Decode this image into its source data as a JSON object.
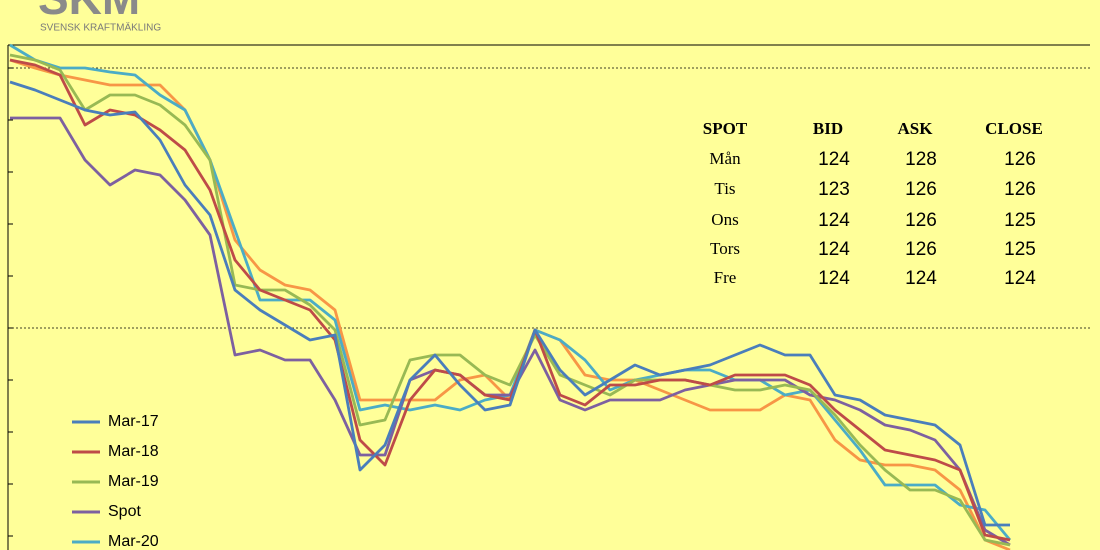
{
  "logo": {
    "title": "SKM",
    "subtitle": "SVENSK KRAFTMÄKLING"
  },
  "table": {
    "header": [
      "SPOT",
      "BID",
      "ASK",
      "CLOSE"
    ],
    "rows": [
      [
        "Mån",
        "124",
        "128",
        "126"
      ],
      [
        "Tis",
        "123",
        "126",
        "126"
      ],
      [
        "Ons",
        "124",
        "126",
        "125"
      ],
      [
        "Tors",
        "124",
        "126",
        "125"
      ],
      [
        "Fre",
        "124",
        "124",
        "124"
      ]
    ]
  },
  "chart_data": {
    "type": "line",
    "categories": [
      null,
      null,
      null,
      null,
      null,
      null,
      null,
      null,
      null,
      null,
      null,
      null,
      null,
      null,
      null,
      null,
      null,
      null,
      null,
      null,
      null,
      null,
      null,
      null,
      null,
      null,
      null,
      null,
      null,
      null,
      null,
      null,
      null,
      null,
      null,
      null,
      null,
      null,
      null,
      null,
      null
    ],
    "ylim": [
      0,
      505
    ],
    "yticks": [
      14,
      66,
      118,
      170,
      222,
      274,
      326,
      378,
      430,
      482
    ],
    "reference_lines": [
      222,
      482
    ],
    "series": [
      {
        "name": "Mar-17",
        "color": "#4a7ebb",
        "values": [
          468,
          460,
          450,
          440,
          435,
          438,
          410,
          365,
          335,
          260,
          240,
          225,
          210,
          215,
          80,
          105,
          170,
          195,
          165,
          140,
          145,
          220,
          180,
          155,
          170,
          185,
          175,
          180,
          185,
          195,
          205,
          195,
          195,
          155,
          150,
          135,
          130,
          125,
          105,
          25,
          25
        ]
      },
      {
        "name": "Mar-18",
        "color": "#be4b48",
        "values": [
          490,
          485,
          475,
          425,
          440,
          435,
          420,
          400,
          360,
          290,
          260,
          250,
          240,
          210,
          110,
          85,
          150,
          180,
          175,
          155,
          150,
          220,
          155,
          145,
          165,
          165,
          170,
          170,
          165,
          175,
          175,
          175,
          165,
          140,
          120,
          100,
          95,
          90,
          80,
          15,
          10
        ]
      },
      {
        "name": "Mar-19",
        "color": "#98b954",
        "values": [
          495,
          490,
          480,
          440,
          455,
          455,
          445,
          425,
          390,
          265,
          260,
          260,
          245,
          220,
          125,
          130,
          190,
          195,
          195,
          175,
          165,
          215,
          175,
          165,
          155,
          170,
          170,
          170,
          165,
          160,
          160,
          165,
          160,
          135,
          105,
          80,
          60,
          60,
          50,
          10,
          5
        ]
      },
      {
        "name": "Spot",
        "color": "#7d60a0",
        "values": [
          432,
          432,
          432,
          390,
          365,
          380,
          375,
          350,
          315,
          195,
          200,
          190,
          190,
          150,
          95,
          95,
          170,
          180,
          175,
          155,
          155,
          200,
          150,
          140,
          150,
          150,
          150,
          160,
          165,
          170,
          170,
          170,
          155,
          150,
          140,
          125,
          120,
          110,
          80,
          20,
          5
        ]
      },
      {
        "name": "Mar-20",
        "color": "#4bacc6",
        "values": [
          505,
          490,
          482,
          482,
          478,
          475,
          455,
          440,
          390,
          320,
          250,
          250,
          250,
          230,
          140,
          145,
          140,
          145,
          140,
          150,
          155,
          220,
          210,
          190,
          160,
          170,
          175,
          180,
          180,
          170,
          170,
          155,
          160,
          130,
          100,
          65,
          65,
          65,
          45,
          40,
          10
        ]
      },
      {
        "name": null,
        "color": "#f79646",
        "values": [
          490,
          482,
          475,
          470,
          465,
          465,
          465,
          440,
          390,
          310,
          280,
          265,
          260,
          240,
          150,
          150,
          150,
          150,
          170,
          175,
          150,
          220,
          210,
          175,
          170,
          170,
          160,
          150,
          140,
          140,
          140,
          155,
          150,
          110,
          90,
          85,
          85,
          80,
          60,
          10,
          0
        ]
      }
    ]
  }
}
